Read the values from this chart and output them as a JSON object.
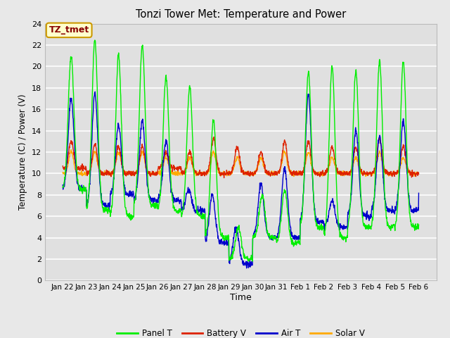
{
  "title": "Tonzi Tower Met: Temperature and Power",
  "xlabel": "Time",
  "ylabel": "Temperature (C) / Power (V)",
  "ylim": [
    0,
    24
  ],
  "yticks": [
    0,
    2,
    4,
    6,
    8,
    10,
    12,
    14,
    16,
    18,
    20,
    22,
    24
  ],
  "bg_color": "#e8e8e8",
  "plot_bg_color": "#e0e0e0",
  "grid_color": "#ffffff",
  "annotation_text": "TZ_tmet",
  "annotation_bg": "#ffffcc",
  "annotation_edge": "#cc9900",
  "annotation_text_color": "#880000",
  "colors": {
    "Panel T": "#00ee00",
    "Battery V": "#dd2200",
    "Air T": "#0000cc",
    "Solar V": "#ffaa00"
  },
  "legend_entries": [
    "Panel T",
    "Battery V",
    "Air T",
    "Solar V"
  ],
  "x_tick_labels": [
    "Jan 22",
    "Jan 23",
    "Jan 24",
    "Jan 25",
    "Jan 26",
    "Jan 27",
    "Jan 28",
    "Jan 29",
    "Jan 30",
    "Jan 31",
    "Feb 1",
    "Feb 2",
    "Feb 3",
    "Feb 4",
    "Feb 5",
    "Feb 6"
  ]
}
